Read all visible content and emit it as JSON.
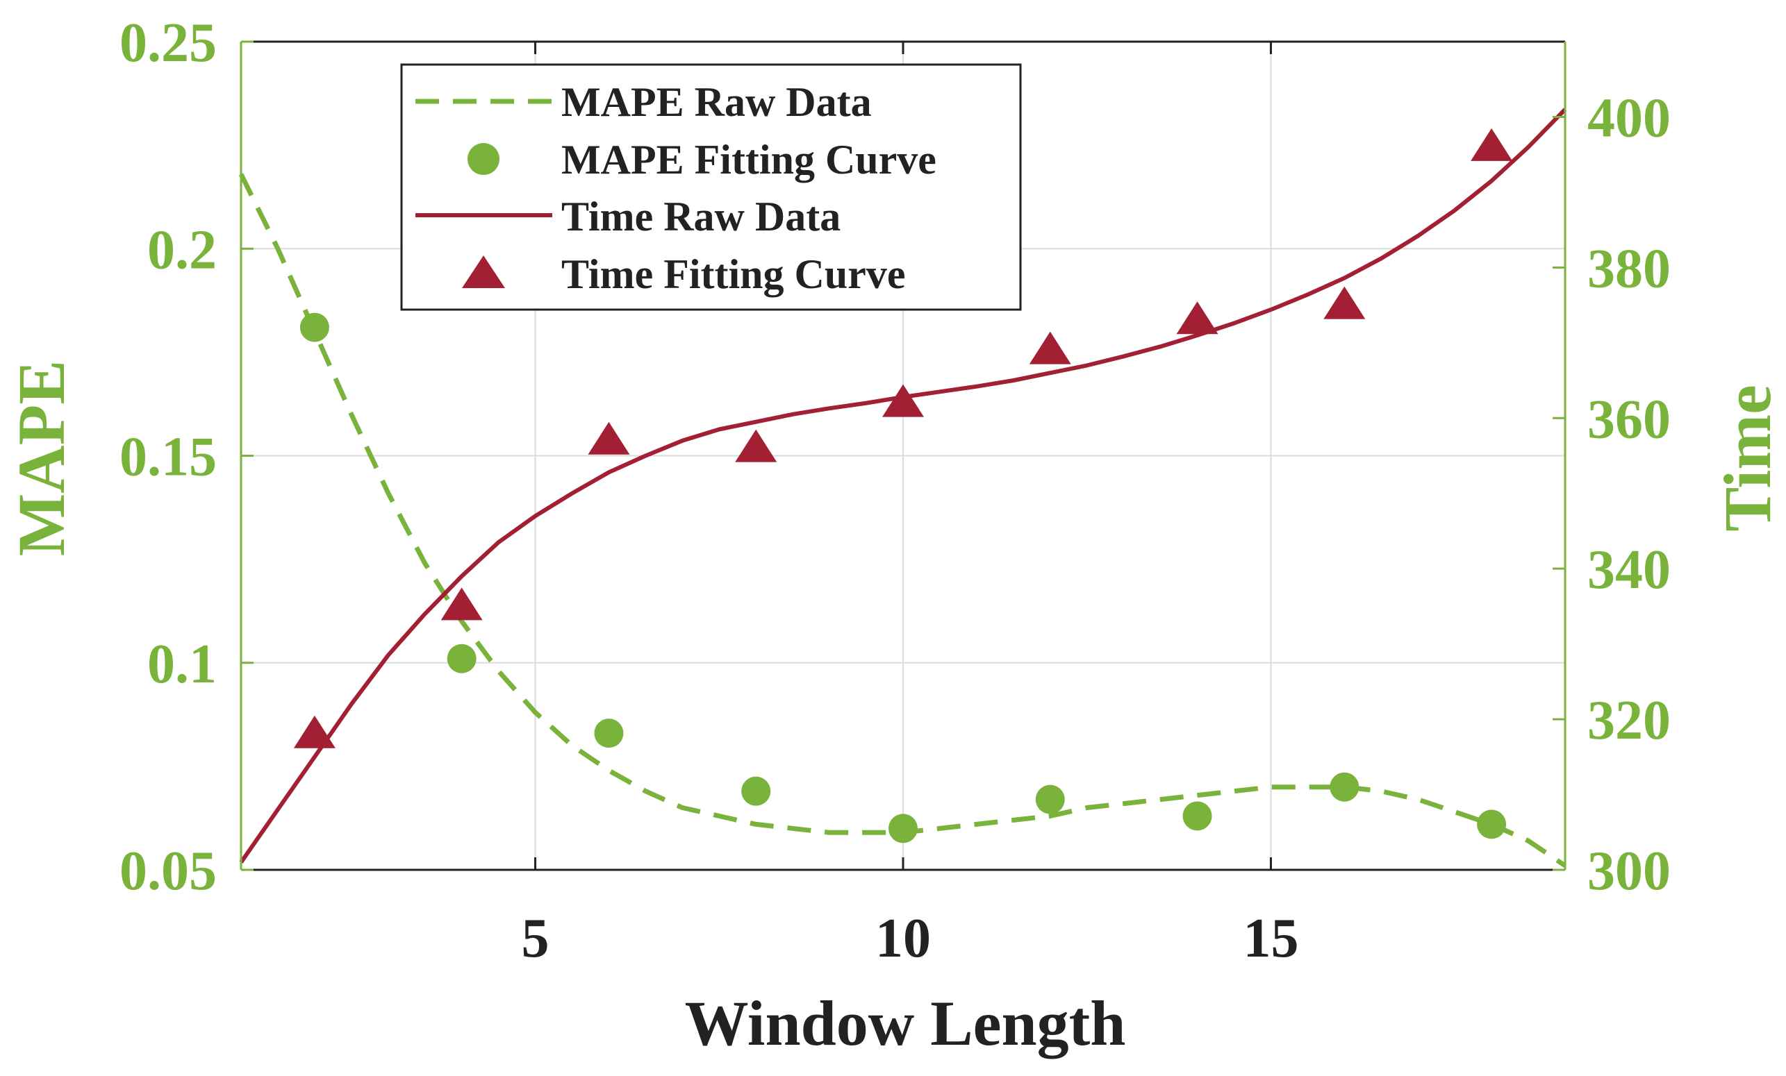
{
  "chart_data": {
    "type": "line",
    "title": "",
    "xlabel": "Window Length",
    "ylabel_left": "MAPE",
    "ylabel_right": "Time",
    "xlim": [
      1,
      19
    ],
    "ylim_left": [
      0.05,
      0.25
    ],
    "ylim_right": [
      300,
      410
    ],
    "xticks": [
      5,
      10,
      15
    ],
    "xtick_labels": [
      "5",
      "10",
      "15"
    ],
    "yticks_left": [
      0.05,
      0.1,
      0.15,
      0.2,
      0.25
    ],
    "ytick_labels_left": [
      "0.05",
      "0.1",
      "0.15",
      "0.2",
      "0.25"
    ],
    "yticks_right": [
      300,
      320,
      340,
      360,
      380,
      400
    ],
    "ytick_labels_right": [
      "300",
      "320",
      "340",
      "360",
      "380",
      "400"
    ],
    "grid": true,
    "legend_position": "top-left",
    "series": [
      {
        "name": "MAPE Raw Data",
        "axis": "left",
        "style": "dashed-line",
        "color": "#7ab33c",
        "x": [
          1,
          1.5,
          2,
          2.5,
          3,
          3.5,
          4,
          4.5,
          5,
          5.5,
          6,
          6.5,
          7,
          7.5,
          8,
          8.5,
          9,
          9.5,
          10,
          10.5,
          11,
          11.5,
          12,
          12.5,
          13,
          13.5,
          14,
          14.5,
          15,
          15.5,
          16,
          16.5,
          17,
          17.5,
          18,
          18.5,
          19
        ],
        "values": [
          0.218,
          0.2,
          0.18,
          0.16,
          0.141,
          0.124,
          0.11,
          0.098,
          0.088,
          0.08,
          0.074,
          0.069,
          0.065,
          0.063,
          0.061,
          0.06,
          0.059,
          0.059,
          0.059,
          0.06,
          0.061,
          0.062,
          0.063,
          0.065,
          0.066,
          0.067,
          0.068,
          0.069,
          0.07,
          0.07,
          0.07,
          0.069,
          0.067,
          0.064,
          0.061,
          0.057,
          0.051
        ]
      },
      {
        "name": "MAPE Fitting Curve",
        "axis": "left",
        "style": "circle-markers",
        "color": "#7ab33c",
        "x": [
          2,
          4,
          6,
          8,
          10,
          12,
          14,
          16,
          18
        ],
        "values": [
          0.181,
          0.101,
          0.083,
          0.069,
          0.06,
          0.067,
          0.063,
          0.07,
          0.061
        ]
      },
      {
        "name": "Time Raw Data",
        "axis": "right",
        "style": "solid-line",
        "color": "#a31f34",
        "x": [
          1,
          1.5,
          2,
          2.5,
          3,
          3.5,
          4,
          4.5,
          5,
          5.5,
          6,
          6.5,
          7,
          7.5,
          8,
          8.5,
          9,
          9.5,
          10,
          10.5,
          11,
          11.5,
          12,
          12.5,
          13,
          13.5,
          14,
          14.5,
          15,
          15.5,
          16,
          16.5,
          17,
          17.5,
          18,
          18.5,
          19
        ],
        "values": [
          301.0,
          308.0,
          315.0,
          322.0,
          328.5,
          334.0,
          339.0,
          343.5,
          347.0,
          350.0,
          352.8,
          355.0,
          357.0,
          358.5,
          359.5,
          360.5,
          361.3,
          362.0,
          362.8,
          363.5,
          364.2,
          365.0,
          366.0,
          367.0,
          368.2,
          369.5,
          371.0,
          372.6,
          374.4,
          376.4,
          378.6,
          381.2,
          384.2,
          387.6,
          391.5,
          396.0,
          401.0
        ]
      },
      {
        "name": "Time Fitting Curve",
        "axis": "right",
        "style": "triangle-markers",
        "color": "#a31f34",
        "x": [
          2,
          4,
          6,
          8,
          10,
          12,
          14,
          16,
          18
        ],
        "values": [
          318,
          335,
          357,
          356,
          362,
          369,
          373,
          375,
          396
        ]
      }
    ]
  }
}
